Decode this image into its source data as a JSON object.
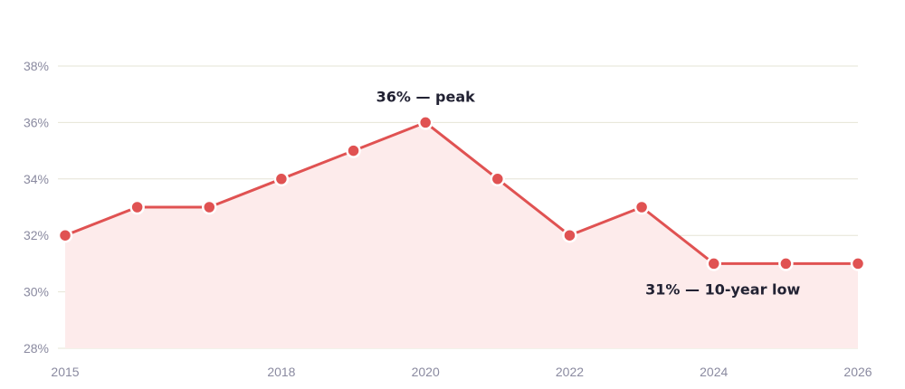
{
  "chart_data": {
    "type": "area",
    "title": "",
    "xlabel": "",
    "ylabel": "",
    "x": [
      2015,
      2016,
      2017,
      2018,
      2019,
      2020,
      2021,
      2022,
      2023,
      2024,
      2025,
      2026
    ],
    "series": [
      {
        "values": [
          32,
          33,
          33,
          34,
          35,
          36,
          34,
          32,
          33,
          31,
          31,
          31
        ]
      }
    ],
    "xlim": [
      2015,
      2026
    ],
    "ylim": [
      28,
      38
    ],
    "x_tick_labels": [
      "2015",
      "2018",
      "2020",
      "2022",
      "2024",
      "2026"
    ],
    "y_tick_labels": [
      "28%",
      "30%",
      "32%",
      "34%",
      "36%",
      "38%"
    ],
    "annotations": [
      {
        "text": "36% — peak",
        "x": 2020,
        "y": 36
      },
      {
        "text": "31% — 10-year low",
        "x": 2024,
        "y": 31
      }
    ],
    "grid": true,
    "colors": {
      "line": "#e05252",
      "fill": "#fdebeb",
      "grid": "#e6e4d6"
    }
  }
}
